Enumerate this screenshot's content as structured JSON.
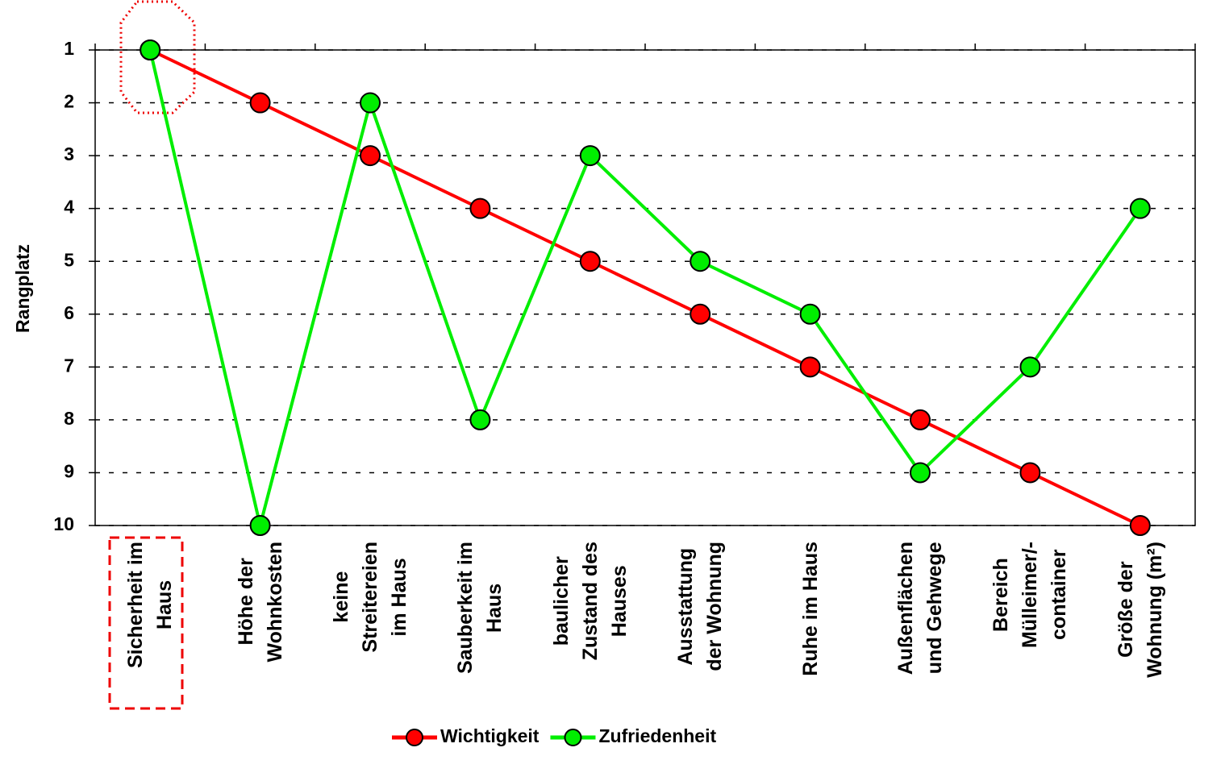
{
  "chart_data": {
    "type": "line",
    "y_label": "Rangplatz",
    "categories": [
      "Sicherheit im\nHaus",
      "Höhe der\nWohnkosten",
      "keine\nStreitereien\nim Haus",
      "Sauberkeit im\nHaus",
      "baulicher\nZustand des\nHauses",
      "Ausstattung\nder Wohnung",
      "Ruhe im Haus",
      "Außenflächen\nund Gehwege",
      "Bereich\nMülleimer/-\ncontainer",
      "Größe der\nWohnung (m²)"
    ],
    "series": [
      {
        "name": "Wichtigkeit",
        "color": "#ff0000",
        "values": [
          1,
          2,
          3,
          4,
          5,
          6,
          7,
          8,
          9,
          10
        ]
      },
      {
        "name": "Zufriedenheit",
        "color": "#00ee00",
        "values": [
          1,
          10,
          2,
          8,
          3,
          5,
          6,
          9,
          7,
          4
        ]
      }
    ],
    "ylim": [
      10,
      1
    ],
    "yticks": [
      1,
      2,
      3,
      4,
      5,
      6,
      7,
      8,
      9,
      10
    ],
    "grid": true,
    "legend": "bottom"
  }
}
